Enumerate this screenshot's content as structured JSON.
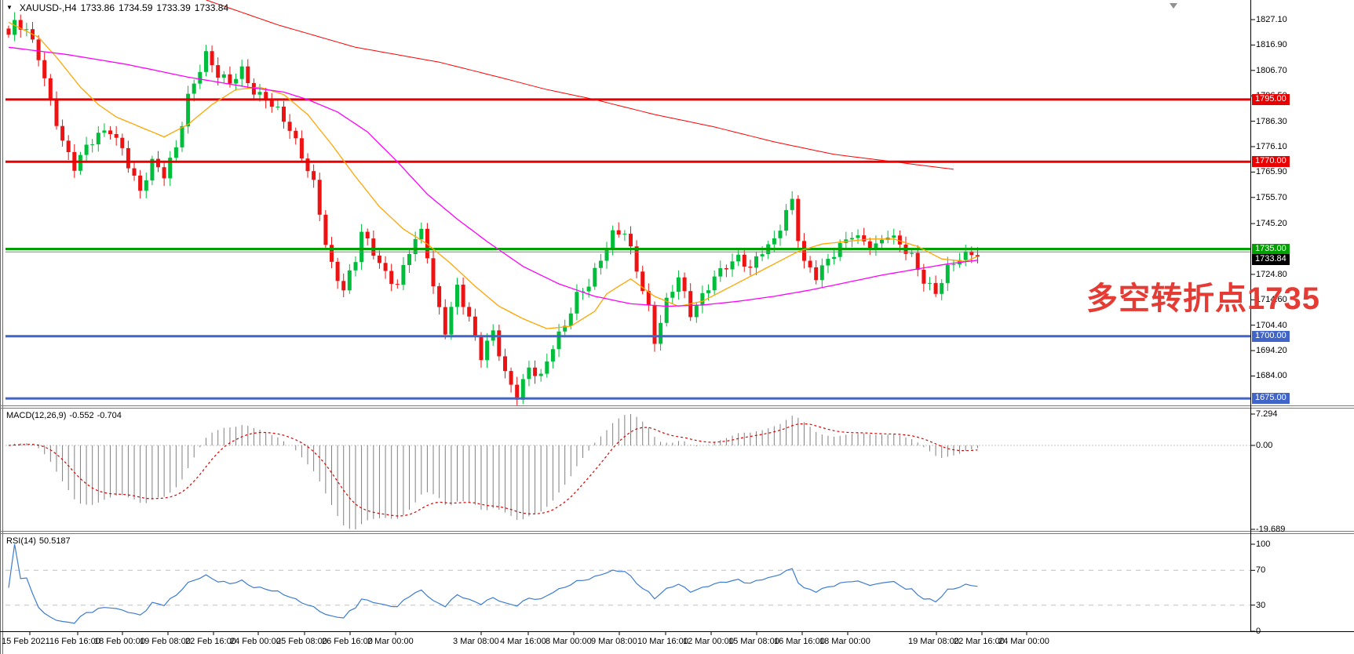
{
  "header": {
    "symbol": "XAUUSD-,H4",
    "open": "1733.86",
    "high": "1734.59",
    "low": "1733.39",
    "close": "1733.84"
  },
  "indicators": {
    "macd": {
      "name": "MACD(12,26,9)",
      "main": "-0.552",
      "signal": "-0.704"
    },
    "rsi": {
      "name": "RSI(14)",
      "value": "50.5187"
    }
  },
  "annotation": {
    "text": "多空转折点1735",
    "color": "#e43c34"
  },
  "chart_data": {
    "type": "candlestick",
    "symbol": "XAUUSD-",
    "timeframe": "H4",
    "ohlc_display": {
      "open": 1733.86,
      "high": 1734.59,
      "low": 1733.39,
      "close": 1733.84
    },
    "bars": 163,
    "price_axis": {
      "ylim": [
        1668,
        1836
      ],
      "ticks": [
        "1827.10",
        "1816.90",
        "1806.70",
        "1796.50",
        "1786.30",
        "1776.10",
        "1765.90",
        "1755.70",
        "1745.20",
        "1724.80",
        "1714.60",
        "1704.40",
        "1694.20",
        "1684.00"
      ]
    },
    "levels": [
      {
        "price": 1795,
        "color": "#e80000",
        "width": 3,
        "label": "1795.00"
      },
      {
        "price": 1770,
        "color": "#e80000",
        "width": 3,
        "label": "1770.00"
      },
      {
        "price": 1735,
        "color": "#00a000",
        "width": 3,
        "label": "1735.00"
      },
      {
        "price": 1733.84,
        "color": "#808080",
        "width": 1,
        "label": "1733.84"
      },
      {
        "price": 1700,
        "color": "#4164c8",
        "width": 3,
        "label": "1700.00"
      },
      {
        "price": 1675,
        "color": "#4164c8",
        "width": 3,
        "label": "1675.00"
      }
    ],
    "badges": [
      {
        "label": "1795.00",
        "price": 1795,
        "bg": "#e80000"
      },
      {
        "label": "1770.00",
        "price": 1770,
        "bg": "#e80000"
      },
      {
        "label": "1735.00",
        "price": 1735,
        "bg": "#00a000"
      },
      {
        "label": "1733.84",
        "price": 1733.84,
        "bg": "#000000"
      },
      {
        "label": "1700.00",
        "price": 1700,
        "bg": "#4164c8"
      },
      {
        "label": "1675.00",
        "price": 1675,
        "bg": "#4164c8"
      }
    ],
    "close_path_anchors": [
      [
        0,
        1821
      ],
      [
        1,
        1825
      ],
      [
        3,
        1822
      ],
      [
        5,
        1812
      ],
      [
        7,
        1795
      ],
      [
        9,
        1779
      ],
      [
        11,
        1768
      ],
      [
        13,
        1775
      ],
      [
        15,
        1780
      ],
      [
        17,
        1783
      ],
      [
        19,
        1776
      ],
      [
        21,
        1764
      ],
      [
        22,
        1758
      ],
      [
        24,
        1769
      ],
      [
        26,
        1764
      ],
      [
        28,
        1776
      ],
      [
        30,
        1797
      ],
      [
        32,
        1808
      ],
      [
        33,
        1813
      ],
      [
        35,
        1804
      ],
      [
        37,
        1801
      ],
      [
        39,
        1807
      ],
      [
        41,
        1799
      ],
      [
        43,
        1796
      ],
      [
        45,
        1790
      ],
      [
        47,
        1782
      ],
      [
        49,
        1772
      ],
      [
        51,
        1762
      ],
      [
        52,
        1751
      ],
      [
        53,
        1738
      ],
      [
        54,
        1729
      ],
      [
        56,
        1718
      ],
      [
        58,
        1730
      ],
      [
        59,
        1741
      ],
      [
        61,
        1734
      ],
      [
        63,
        1726
      ],
      [
        65,
        1721
      ],
      [
        67,
        1734
      ],
      [
        69,
        1741
      ],
      [
        70,
        1732
      ],
      [
        71,
        1719
      ],
      [
        73,
        1703
      ],
      [
        75,
        1721
      ],
      [
        77,
        1707
      ],
      [
        79,
        1691
      ],
      [
        81,
        1701
      ],
      [
        83,
        1685
      ],
      [
        85,
        1677
      ],
      [
        87,
        1688
      ],
      [
        89,
        1683
      ],
      [
        91,
        1695
      ],
      [
        93,
        1704
      ],
      [
        95,
        1717
      ],
      [
        97,
        1722
      ],
      [
        99,
        1731
      ],
      [
        101,
        1740
      ],
      [
        103,
        1741
      ],
      [
        105,
        1727
      ],
      [
        107,
        1712
      ],
      [
        108,
        1699
      ],
      [
        110,
        1714
      ],
      [
        112,
        1723
      ],
      [
        114,
        1708
      ],
      [
        116,
        1716
      ],
      [
        118,
        1725
      ],
      [
        120,
        1729
      ],
      [
        122,
        1731
      ],
      [
        124,
        1726
      ],
      [
        126,
        1734
      ],
      [
        128,
        1739
      ],
      [
        130,
        1751
      ],
      [
        131,
        1755
      ],
      [
        132,
        1740
      ],
      [
        133,
        1729
      ],
      [
        135,
        1723
      ],
      [
        137,
        1730
      ],
      [
        139,
        1737
      ],
      [
        141,
        1742
      ],
      [
        143,
        1738
      ],
      [
        145,
        1735
      ],
      [
        147,
        1740
      ],
      [
        149,
        1737
      ],
      [
        151,
        1733
      ],
      [
        153,
        1723
      ],
      [
        155,
        1717
      ],
      [
        157,
        1726
      ],
      [
        159,
        1731
      ],
      [
        161,
        1734
      ],
      [
        162,
        1733.8
      ]
    ],
    "moving_averages": {
      "fast_orange": [
        [
          0,
          1826
        ],
        [
          5,
          1820
        ],
        [
          8,
          1812
        ],
        [
          12,
          1800
        ],
        [
          15,
          1793
        ],
        [
          18,
          1788
        ],
        [
          22,
          1784
        ],
        [
          26,
          1780
        ],
        [
          30,
          1785
        ],
        [
          34,
          1793
        ],
        [
          38,
          1799
        ],
        [
          42,
          1800
        ],
        [
          46,
          1797
        ],
        [
          50,
          1789
        ],
        [
          54,
          1777
        ],
        [
          58,
          1764
        ],
        [
          62,
          1752
        ],
        [
          66,
          1743
        ],
        [
          70,
          1737
        ],
        [
          74,
          1729
        ],
        [
          78,
          1720
        ],
        [
          82,
          1712
        ],
        [
          86,
          1707
        ],
        [
          90,
          1703
        ],
        [
          94,
          1704
        ],
        [
          98,
          1710
        ],
        [
          100,
          1717
        ],
        [
          104,
          1723
        ],
        [
          108,
          1716
        ],
        [
          112,
          1712
        ],
        [
          116,
          1714
        ],
        [
          120,
          1719
        ],
        [
          124,
          1724
        ],
        [
          128,
          1729
        ],
        [
          132,
          1734
        ],
        [
          136,
          1737
        ],
        [
          140,
          1738
        ],
        [
          144,
          1739
        ],
        [
          148,
          1739
        ],
        [
          152,
          1736
        ],
        [
          156,
          1731
        ],
        [
          160,
          1730
        ],
        [
          162,
          1732
        ]
      ],
      "slow_magenta": [
        [
          0,
          1816
        ],
        [
          10,
          1813
        ],
        [
          20,
          1809
        ],
        [
          30,
          1804
        ],
        [
          40,
          1800
        ],
        [
          46,
          1798
        ],
        [
          50,
          1795
        ],
        [
          55,
          1790
        ],
        [
          60,
          1782
        ],
        [
          65,
          1770
        ],
        [
          70,
          1757
        ],
        [
          75,
          1747
        ],
        [
          80,
          1738
        ],
        [
          86,
          1728
        ],
        [
          92,
          1721
        ],
        [
          98,
          1716
        ],
        [
          104,
          1713
        ],
        [
          110,
          1712
        ],
        [
          116,
          1712.5
        ],
        [
          122,
          1714
        ],
        [
          128,
          1716
        ],
        [
          134,
          1718.5
        ],
        [
          140,
          1721.5
        ],
        [
          146,
          1724.5
        ],
        [
          152,
          1727
        ],
        [
          157,
          1729
        ],
        [
          162,
          1730.5
        ]
      ],
      "long_red": [
        [
          33,
          1835
        ],
        [
          45,
          1825
        ],
        [
          58,
          1816
        ],
        [
          72,
          1810
        ],
        [
          82,
          1804
        ],
        [
          90,
          1799
        ],
        [
          98,
          1795
        ],
        [
          108,
          1789
        ],
        [
          118,
          1784
        ],
        [
          128,
          1778
        ],
        [
          138,
          1773
        ],
        [
          148,
          1770
        ],
        [
          153,
          1768.5
        ],
        [
          158,
          1767
        ]
      ]
    },
    "macd": {
      "params": [
        12,
        26,
        9
      ],
      "display_main": -0.552,
      "display_signal": -0.704,
      "axis_ticks": [
        "7.294",
        "0.00",
        "-19.689"
      ]
    },
    "rsi": {
      "period": 14,
      "display_value": 50.5187,
      "axis_ticks": [
        "100",
        "70",
        "30",
        "0"
      ],
      "levels": [
        70,
        30
      ]
    },
    "time_axis": {
      "labels": [
        [
          2,
          "15 Feb 2021"
        ],
        [
          63,
          "16 Feb 16:00"
        ],
        [
          120,
          "18 Feb 00:00"
        ],
        [
          178,
          "19 Feb 08:00"
        ],
        [
          236,
          "22 Feb 16:00"
        ],
        [
          293,
          "24 Feb 00:00"
        ],
        [
          352,
          "25 Feb 08:00"
        ],
        [
          410,
          "26 Feb 16:00"
        ],
        [
          468,
          "2 Mar 00:00"
        ],
        [
          577,
          "3 Mar 08:00"
        ],
        [
          637,
          "4 Mar 16:00"
        ],
        [
          695,
          "8 Mar 00:00"
        ],
        [
          753,
          "9 Mar 08:00"
        ],
        [
          812,
          "10 Mar 16:00"
        ],
        [
          870,
          "12 Mar 00:00"
        ],
        [
          928,
          "15 Mar 08:00"
        ],
        [
          986,
          "16 Mar 16:00"
        ],
        [
          1044,
          "18 Mar 00:00"
        ],
        [
          1157,
          "19 Mar 08:00"
        ],
        [
          1215,
          "22 Mar 16:00"
        ],
        [
          1272,
          "24 Mar 00:00"
        ]
      ]
    },
    "colors": {
      "up": "#00bd3c",
      "down": "#ee1212",
      "ma_fast": "#ffa500",
      "ma_slow": "#ff00ff",
      "ma_long": "#ff0000",
      "macd_hist": "#808080",
      "macd_signal": "#dd0000",
      "rsi_line": "#3d7dd1",
      "dash_grid": "#c0c0c0",
      "axis": "#000000",
      "separator": "#787878"
    }
  }
}
